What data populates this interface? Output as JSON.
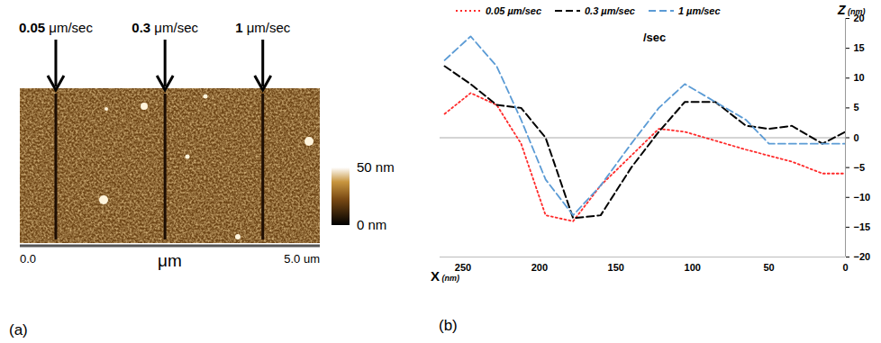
{
  "chart_data": [
    {
      "type": "image",
      "panel_label": "(a)",
      "x_label": "μm",
      "xlim": [
        0,
        5
      ],
      "xticks": [
        {
          "value": 0,
          "label": "0.0"
        },
        {
          "value": 5,
          "label": "5.0 um"
        }
      ],
      "annotations": [
        {
          "text": "0.05 μm/sec",
          "x": 0.6
        },
        {
          "text": "0.3 μm/sec",
          "x": 2.42
        },
        {
          "text": "1 μm/sec",
          "x": 4.05
        }
      ],
      "colorbar": {
        "range": [
          0,
          50
        ],
        "ticks": [
          {
            "value": 0,
            "label": "0 nm"
          },
          {
            "value": 50,
            "label": "50 nm"
          }
        ]
      }
    },
    {
      "type": "line",
      "panel_label": "(b)",
      "x_label": "X (nm)",
      "y_label": "Z (nm)",
      "x": [
        262,
        245,
        228,
        212,
        196,
        178,
        160,
        140,
        122,
        105,
        85,
        65,
        50,
        35,
        15,
        0
      ],
      "series": [
        {
          "name": "0.05 µm/sec",
          "color": "#ff2a2a",
          "line_style": "dotted",
          "values": [
            4,
            7.5,
            5.5,
            -1,
            -13,
            -14,
            -8,
            -3,
            1.5,
            1,
            -0.5,
            -2,
            -3,
            -4,
            -6,
            -6
          ]
        },
        {
          "name": "0.3 µm/sec",
          "color": "#000000",
          "line_style": "dashed",
          "values": [
            12,
            9,
            5.5,
            5,
            0,
            -13.5,
            -13,
            -5,
            1,
            6,
            6,
            2,
            1.5,
            2,
            -1,
            1
          ]
        },
        {
          "name": "1 µm/sec",
          "color": "#5b9bd5",
          "line_style": "dashed",
          "values": [
            13,
            17,
            12,
            3,
            -7,
            -13,
            -8,
            -1,
            5,
            9,
            6,
            3,
            -1,
            -1,
            -1,
            -1
          ]
        }
      ],
      "xlim": [
        265,
        0
      ],
      "xticks": [
        250,
        200,
        150,
        100,
        50,
        0
      ],
      "ylim": [
        -20,
        20
      ],
      "yticks": [
        -20,
        -15,
        -10,
        -5,
        0,
        5,
        10,
        15,
        20
      ],
      "baseline": 0,
      "legend": "top",
      "annotations": [
        {
          "text": "/sec"
        }
      ]
    }
  ]
}
